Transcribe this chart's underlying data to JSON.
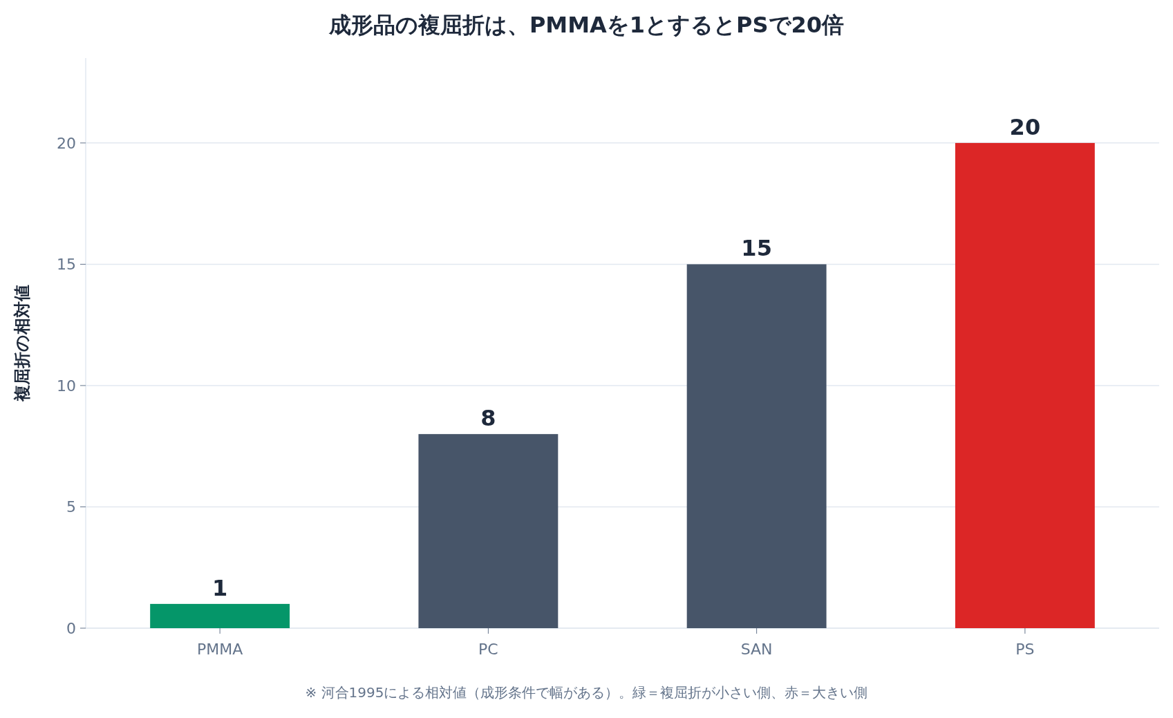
{
  "chart_data": {
    "type": "bar",
    "title": "成形品の複屈折は、PMMAを1とするとPSで20倍",
    "ylabel": "複屈折の相対値",
    "categories": [
      "PMMA",
      "PC",
      "SAN",
      "PS"
    ],
    "values": [
      1,
      8,
      15,
      20
    ],
    "colors": [
      "#059669",
      "#475569",
      "#475569",
      "#dc2626"
    ],
    "ylim": [
      0,
      23.5
    ],
    "yticks": [
      0,
      5,
      10,
      15,
      20
    ],
    "grid": "y",
    "data_labels": true,
    "annotations": [
      "※ 河合1995による相対値（成形条件で幅がある）。緑＝複屈折が小さい側、赤＝大きい側"
    ]
  }
}
